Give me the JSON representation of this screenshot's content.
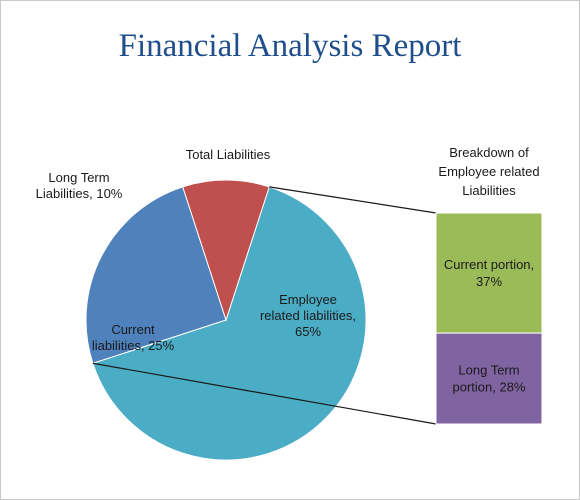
{
  "page": {
    "title": "Financial Analysis Report"
  },
  "chart_data": [
    {
      "type": "pie",
      "title": "Total Liabilities",
      "categories": [
        "Employee related liabilities",
        "Current liabilities",
        "Long Term Liabilities"
      ],
      "values": [
        65,
        25,
        10
      ],
      "unit": "%",
      "data_labels": [
        [
          "Employee",
          "related liabilities,",
          "65%"
        ],
        [
          "Current",
          "liabilities, 25%"
        ],
        [
          "Long Term",
          "Liabilities, 10%"
        ]
      ],
      "colors": [
        "#4bacc6",
        "#4f81bd",
        "#c0504d"
      ]
    },
    {
      "type": "bar",
      "stacked": true,
      "title": "Breakdown of Employee related Liabilities",
      "title_lines": [
        "Breakdown of",
        "Employee related",
        "Liabilities"
      ],
      "categories": [
        "Current portion",
        "Long Term portion"
      ],
      "values": [
        37,
        28
      ],
      "unit": "%",
      "data_labels": [
        [
          "Current portion,",
          "37%"
        ],
        [
          "Long Term",
          "portion, 28%"
        ]
      ],
      "colors": [
        "#9bbb59",
        "#8064a2"
      ]
    }
  ]
}
